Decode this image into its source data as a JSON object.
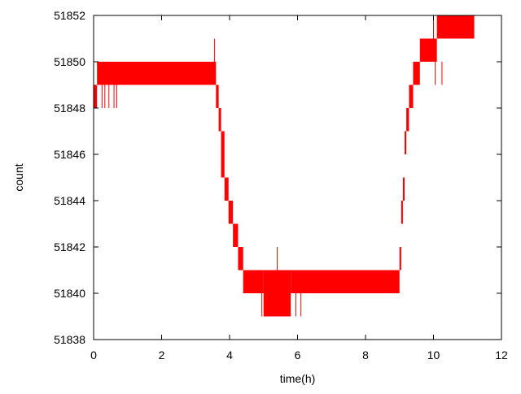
{
  "chart_data": {
    "type": "area",
    "xlabel": "time(h)",
    "ylabel": "count",
    "xlim": [
      0,
      12
    ],
    "ylim": [
      51838,
      51852
    ],
    "x_ticks": [
      0,
      2,
      4,
      6,
      8,
      10,
      12
    ],
    "y_ticks": [
      51838,
      51840,
      51842,
      51844,
      51846,
      51848,
      51850,
      51852
    ],
    "grid": false,
    "legend": "none",
    "series": [
      {
        "color": "#ff0000",
        "note_style": "noisy count band (min/max per time step)",
        "segments": [
          {
            "x0": 0.0,
            "x1": 0.1,
            "low": 51848,
            "high": 51849
          },
          {
            "x0": 0.1,
            "x1": 3.6,
            "low": 51849,
            "high": 51850
          },
          {
            "x0": 3.6,
            "x1": 3.68,
            "low": 51848,
            "high": 51849
          },
          {
            "x0": 3.68,
            "x1": 3.75,
            "low": 51847,
            "high": 51848
          },
          {
            "x0": 3.75,
            "x1": 3.85,
            "low": 51845,
            "high": 51847
          },
          {
            "x0": 3.85,
            "x1": 3.97,
            "low": 51844,
            "high": 51845
          },
          {
            "x0": 3.97,
            "x1": 4.1,
            "low": 51843,
            "high": 51844
          },
          {
            "x0": 4.1,
            "x1": 4.25,
            "low": 51842,
            "high": 51843
          },
          {
            "x0": 4.25,
            "x1": 4.4,
            "low": 51841,
            "high": 51842
          },
          {
            "x0": 4.4,
            "x1": 5.0,
            "low": 51840,
            "high": 51841
          },
          {
            "x0": 5.0,
            "x1": 5.8,
            "low": 51839,
            "high": 51841
          },
          {
            "x0": 5.8,
            "x1": 9.0,
            "low": 51840,
            "high": 51841
          },
          {
            "x0": 9.0,
            "x1": 9.05,
            "low": 51841,
            "high": 51842
          },
          {
            "x0": 9.05,
            "x1": 9.1,
            "low": 51843,
            "high": 51844
          },
          {
            "x0": 9.1,
            "x1": 9.15,
            "low": 51844,
            "high": 51845
          },
          {
            "x0": 9.15,
            "x1": 9.2,
            "low": 51846,
            "high": 51847
          },
          {
            "x0": 9.2,
            "x1": 9.28,
            "low": 51847,
            "high": 51848
          },
          {
            "x0": 9.28,
            "x1": 9.4,
            "low": 51848,
            "high": 51849
          },
          {
            "x0": 9.4,
            "x1": 9.6,
            "low": 51849,
            "high": 51850
          },
          {
            "x0": 9.6,
            "x1": 10.1,
            "low": 51850,
            "high": 51851
          },
          {
            "x0": 10.1,
            "x1": 11.2,
            "low": 51851,
            "high": 51852
          }
        ],
        "spikes": [
          {
            "x": 0.25,
            "low": 51848,
            "high": 51849
          },
          {
            "x": 0.33,
            "low": 51848,
            "high": 51849
          },
          {
            "x": 0.45,
            "low": 51848,
            "high": 51849
          },
          {
            "x": 0.6,
            "low": 51848,
            "high": 51849
          },
          {
            "x": 0.68,
            "low": 51848,
            "high": 51849
          },
          {
            "x": 3.56,
            "low": 51850,
            "high": 51851
          },
          {
            "x": 4.95,
            "low": 51839,
            "high": 51840
          },
          {
            "x": 5.05,
            "low": 51839,
            "high": 51840
          },
          {
            "x": 5.4,
            "low": 51841,
            "high": 51842
          },
          {
            "x": 5.95,
            "low": 51839,
            "high": 51840
          },
          {
            "x": 6.1,
            "low": 51839,
            "high": 51840
          },
          {
            "x": 10.05,
            "low": 51849,
            "high": 51850
          },
          {
            "x": 10.25,
            "low": 51849,
            "high": 51850
          },
          {
            "x": 10.0,
            "low": 51851,
            "high": 51852
          }
        ]
      }
    ]
  }
}
